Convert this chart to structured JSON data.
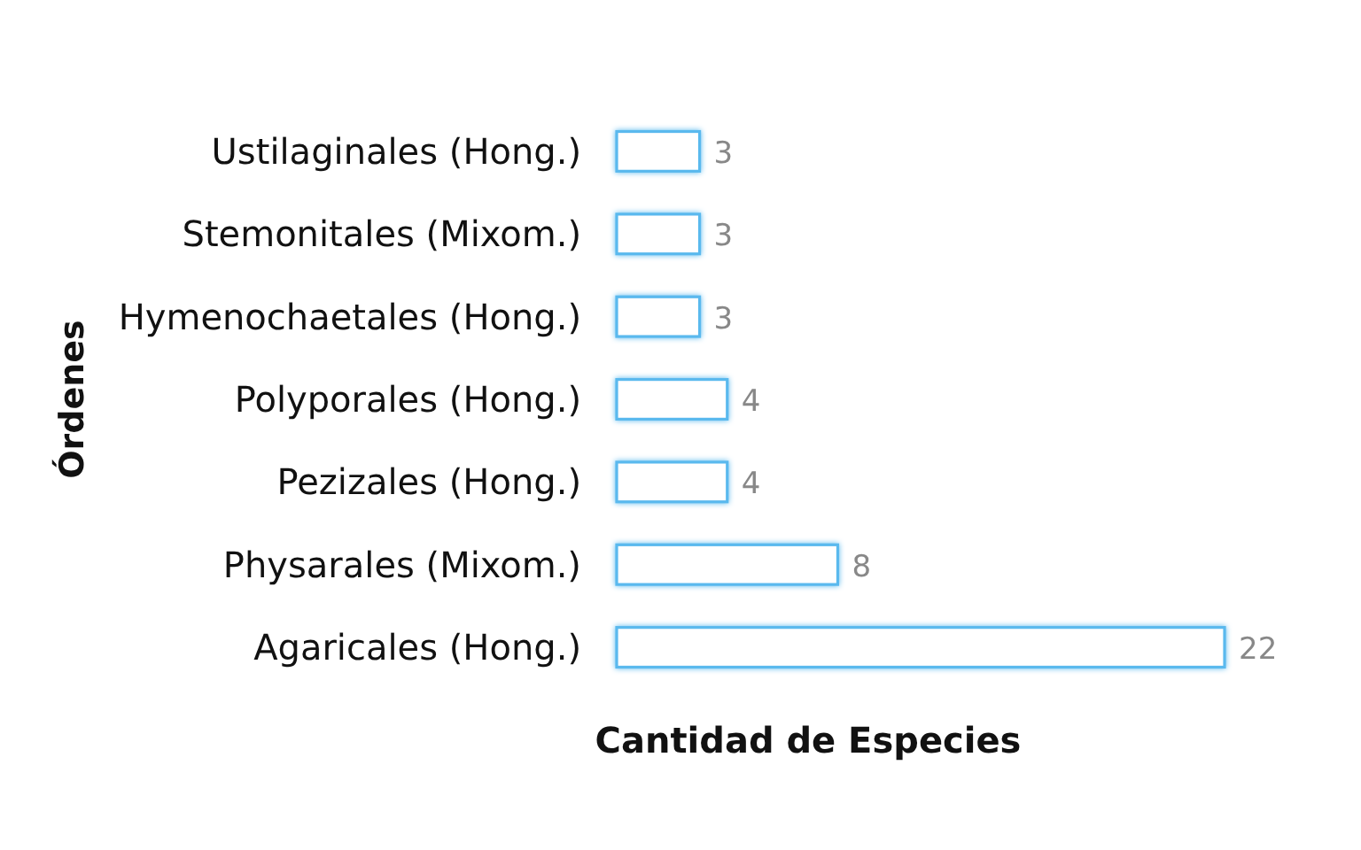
{
  "chart_data": {
    "type": "bar",
    "orientation": "horizontal",
    "xlabel": "Cantidad de Especies",
    "ylabel": "Órdenes",
    "categories": [
      "Ustilaginales (Hong.)",
      "Stemonitales (Mixom.)",
      "Hymenochaetales (Hong.)",
      "Polyporales (Hong.)",
      "Pezizales (Hong.)",
      "Physarales (Mixom.)",
      "Agaricales (Hong.)"
    ],
    "values": [
      3,
      3,
      3,
      4,
      4,
      8,
      22
    ],
    "color": "#5ab9ee",
    "data_labels": true,
    "tick_labels": "y"
  }
}
